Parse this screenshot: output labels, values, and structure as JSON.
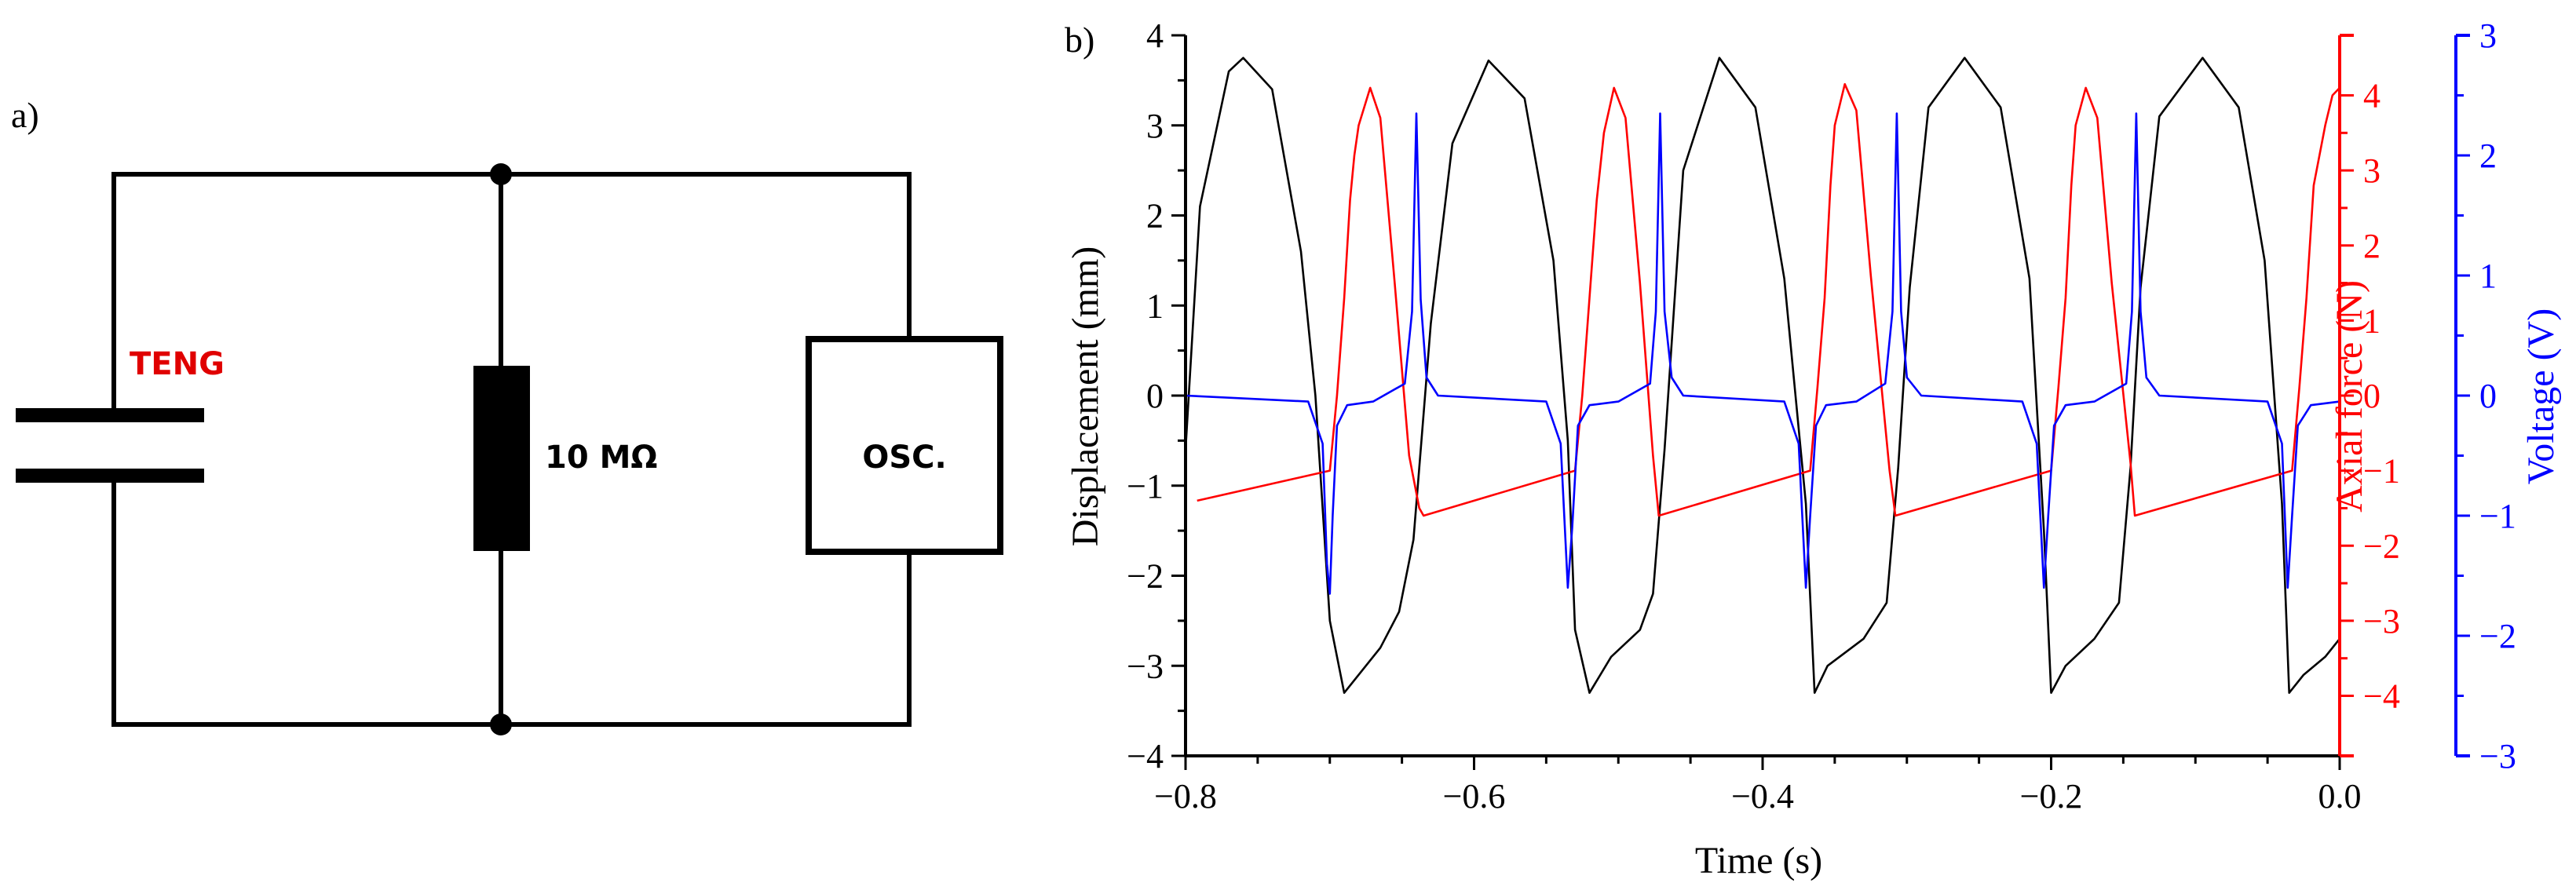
{
  "panel_a": {
    "label": "a)",
    "teng_label": "TENG",
    "resistor_label": "10 MΩ",
    "osc_label": "OSC.",
    "colors": {
      "wire": "#000000",
      "teng": "#e00000"
    }
  },
  "chart_data": {
    "type": "line",
    "panel_label": "b)",
    "title": "",
    "xlabel": "Time (s)",
    "xlim": [
      -0.8,
      0.0
    ],
    "xticks": [
      -0.8,
      -0.6,
      -0.4,
      -0.2,
      0.0
    ],
    "xtick_labels": [
      "−0.8",
      "−0.6",
      "−0.4",
      "−0.2",
      "0.0"
    ],
    "axes": [
      {
        "id": "displacement",
        "label": "Displacement (mm)",
        "side": "left",
        "color": "#000000",
        "ylim": [
          -4,
          4
        ],
        "ticks": [
          -4,
          -3,
          -2,
          -1,
          0,
          1,
          2,
          3,
          4
        ],
        "tick_labels": [
          "−4",
          "−3",
          "−2",
          "−1",
          "0",
          "1",
          "2",
          "3",
          "4"
        ]
      },
      {
        "id": "axial_force",
        "label": "Axial force (N)",
        "side": "right",
        "color": "#ff0000",
        "ylim": [
          -4.8,
          4.8
        ],
        "ticks": [
          -4,
          -3,
          -2,
          -1,
          0,
          1,
          2,
          3,
          4
        ],
        "tick_labels": [
          "−4",
          "−3",
          "−2",
          "−1",
          "0",
          "1",
          "2",
          "3",
          "4"
        ]
      },
      {
        "id": "voltage",
        "label": "Voltage (V)",
        "side": "right-outer",
        "color": "#0000ff",
        "ylim": [
          -3,
          3
        ],
        "ticks": [
          -3,
          -2,
          -1,
          0,
          1,
          2,
          3
        ],
        "tick_labels": [
          "−3",
          "−2",
          "−1",
          "0",
          "1",
          "2",
          "3"
        ]
      }
    ],
    "series": [
      {
        "name": "Displacement",
        "axis": "displacement",
        "color": "#000000",
        "x": [
          -0.8,
          -0.79,
          -0.77,
          -0.76,
          -0.74,
          -0.72,
          -0.71,
          -0.7,
          -0.69,
          -0.665,
          -0.652,
          -0.642,
          -0.636,
          -0.63,
          -0.615,
          -0.59,
          -0.565,
          -0.545,
          -0.535,
          -0.53,
          -0.52,
          -0.505,
          -0.485,
          -0.476,
          -0.468,
          -0.455,
          -0.43,
          -0.405,
          -0.385,
          -0.37,
          -0.364,
          -0.355,
          -0.33,
          -0.314,
          -0.306,
          -0.298,
          -0.285,
          -0.26,
          -0.235,
          -0.215,
          -0.205,
          -0.2,
          -0.19,
          -0.17,
          -0.153,
          -0.145,
          -0.138,
          -0.125,
          -0.095,
          -0.07,
          -0.052,
          -0.04,
          -0.035,
          -0.025,
          -0.01,
          0.0
        ],
        "y": [
          -0.6,
          2.1,
          3.6,
          3.75,
          3.4,
          1.6,
          0.0,
          -2.5,
          -3.3,
          -2.8,
          -2.4,
          -1.6,
          -0.4,
          0.8,
          2.8,
          3.72,
          3.3,
          1.5,
          -0.5,
          -2.6,
          -3.3,
          -2.9,
          -2.6,
          -2.2,
          -0.6,
          2.5,
          3.75,
          3.2,
          1.3,
          -1.2,
          -3.3,
          -3.0,
          -2.7,
          -2.3,
          -0.8,
          1.2,
          3.2,
          3.75,
          3.2,
          1.3,
          -1.5,
          -3.3,
          -3.0,
          -2.7,
          -2.3,
          -0.8,
          1.2,
          3.1,
          3.75,
          3.2,
          1.5,
          -1.2,
          -3.3,
          -3.1,
          -2.9,
          -2.7
        ]
      },
      {
        "name": "Axial force",
        "axis": "axial_force",
        "color": "#ff0000",
        "x": [
          -0.792,
          -0.7,
          -0.695,
          -0.69,
          -0.686,
          -0.683,
          -0.68,
          -0.672,
          -0.665,
          -0.655,
          -0.645,
          -0.638,
          -0.635,
          -0.53,
          -0.525,
          -0.52,
          -0.515,
          -0.51,
          -0.503,
          -0.495,
          -0.485,
          -0.476,
          -0.472,
          -0.367,
          -0.362,
          -0.357,
          -0.353,
          -0.35,
          -0.343,
          -0.335,
          -0.325,
          -0.312,
          -0.308,
          -0.2,
          -0.195,
          -0.19,
          -0.186,
          -0.183,
          -0.176,
          -0.168,
          -0.158,
          -0.145,
          -0.142,
          -0.033,
          -0.028,
          -0.023,
          -0.018,
          -0.01,
          -0.005,
          0.0
        ],
        "y": [
          -1.4,
          -1.0,
          0.0,
          1.3,
          2.6,
          3.2,
          3.6,
          4.1,
          3.7,
          1.5,
          -0.8,
          -1.5,
          -1.6,
          -1.0,
          0.0,
          1.3,
          2.6,
          3.5,
          4.1,
          3.7,
          1.5,
          -0.8,
          -1.6,
          -1.0,
          0.1,
          1.3,
          2.8,
          3.6,
          4.15,
          3.8,
          1.6,
          -1.0,
          -1.6,
          -1.0,
          0.1,
          1.3,
          2.8,
          3.6,
          4.1,
          3.7,
          1.5,
          -0.9,
          -1.6,
          -1.0,
          0.1,
          1.3,
          2.8,
          3.6,
          4.0,
          4.1
        ]
      },
      {
        "name": "Voltage",
        "axis": "voltage",
        "color": "#0000ff",
        "x": [
          -0.8,
          -0.715,
          -0.705,
          -0.702,
          -0.7,
          -0.698,
          -0.695,
          -0.688,
          -0.67,
          -0.648,
          -0.643,
          -0.64,
          -0.637,
          -0.633,
          -0.625,
          -0.55,
          -0.54,
          -0.535,
          -0.532,
          -0.528,
          -0.52,
          -0.5,
          -0.478,
          -0.474,
          -0.471,
          -0.468,
          -0.463,
          -0.455,
          -0.385,
          -0.375,
          -0.37,
          -0.367,
          -0.363,
          -0.356,
          -0.335,
          -0.315,
          -0.31,
          -0.307,
          -0.304,
          -0.3,
          -0.29,
          -0.22,
          -0.21,
          -0.205,
          -0.202,
          -0.198,
          -0.19,
          -0.17,
          -0.148,
          -0.144,
          -0.141,
          -0.138,
          -0.134,
          -0.125,
          -0.05,
          -0.04,
          -0.036,
          -0.033,
          -0.029,
          -0.02,
          0.0
        ],
        "y": [
          0.0,
          -0.05,
          -0.4,
          -1.4,
          -1.65,
          -1.0,
          -0.25,
          -0.08,
          -0.05,
          0.1,
          0.7,
          2.35,
          0.8,
          0.15,
          0.0,
          -0.05,
          -0.4,
          -1.6,
          -1.1,
          -0.25,
          -0.08,
          -0.05,
          0.1,
          0.7,
          2.35,
          0.7,
          0.15,
          0.0,
          -0.05,
          -0.4,
          -1.6,
          -1.0,
          -0.25,
          -0.08,
          -0.05,
          0.1,
          0.7,
          2.35,
          0.7,
          0.15,
          0.0,
          -0.05,
          -0.4,
          -1.6,
          -1.0,
          -0.25,
          -0.08,
          -0.05,
          0.1,
          0.7,
          2.35,
          0.7,
          0.15,
          0.0,
          -0.05,
          -0.4,
          -1.6,
          -1.0,
          -0.25,
          -0.08,
          -0.05
        ]
      }
    ]
  }
}
